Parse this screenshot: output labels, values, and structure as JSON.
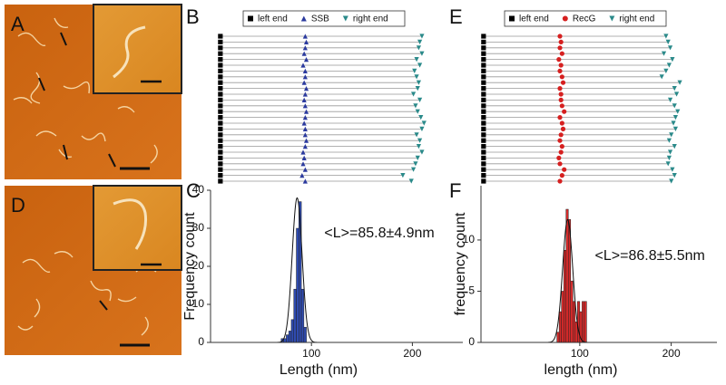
{
  "images": [
    {
      "label": "A"
    },
    {
      "label": "D"
    }
  ],
  "chart_data": [
    {
      "type": "strip",
      "label": "B",
      "xlim": [
        -5,
        220
      ],
      "series": [
        {
          "name": "left end",
          "color": "#000000",
          "marker": "square",
          "values": [
            0,
            0,
            0,
            0,
            0,
            0,
            0,
            0,
            0,
            0,
            0,
            0,
            0,
            0,
            0,
            0,
            0,
            0,
            0,
            0,
            0,
            0,
            0,
            0,
            0,
            0
          ]
        },
        {
          "name": "SSB",
          "color": "#2b3a9e",
          "marker": "triangle",
          "values": [
            80,
            81,
            80,
            79,
            81,
            78,
            80,
            80,
            79,
            81,
            80,
            79,
            80,
            81,
            80,
            79,
            80,
            80,
            81,
            80,
            78,
            79,
            78,
            80,
            77,
            80
          ]
        },
        {
          "name": "right end",
          "color": "#2a8a8a",
          "marker": "triangle-down",
          "values": [
            190,
            188,
            187,
            190,
            185,
            188,
            183,
            185,
            187,
            186,
            182,
            188,
            184,
            186,
            189,
            192,
            190,
            185,
            188,
            187,
            190,
            186,
            184,
            182,
            172,
            180
          ]
        }
      ]
    },
    {
      "type": "strip",
      "label": "E",
      "xlim": [
        -5,
        220
      ],
      "series": [
        {
          "name": "left end",
          "color": "#000000",
          "marker": "square",
          "values": [
            0,
            0,
            0,
            0,
            0,
            0,
            0,
            0,
            0,
            0,
            0,
            0,
            0,
            0,
            0,
            0,
            0,
            0,
            0,
            0,
            0,
            0,
            0,
            0,
            0,
            0
          ]
        },
        {
          "name": "RecG",
          "color": "#d62020",
          "marker": "circle",
          "values": [
            72,
            73,
            72,
            74,
            71,
            73,
            72,
            74,
            75,
            72,
            73,
            73,
            74,
            76,
            72,
            74,
            75,
            73,
            72,
            74,
            73,
            71,
            72,
            76,
            74,
            72
          ]
        },
        {
          "name": "right end",
          "color": "#2a8a8a",
          "marker": "triangle-down",
          "values": [
            172,
            174,
            176,
            170,
            178,
            175,
            172,
            168,
            185,
            180,
            182,
            176,
            180,
            183,
            181,
            179,
            181,
            177,
            175,
            180,
            176,
            175,
            174,
            178,
            180,
            177
          ]
        }
      ]
    },
    {
      "type": "histogram",
      "label": "C",
      "color": "#2f4bb0",
      "x_label": "Length (nm)",
      "y_label": "Frequency count",
      "annotation": "<L>=85.8±4.9nm",
      "bins": [
        70,
        72.5,
        75,
        77.5,
        80,
        82.5,
        85,
        87.5,
        90,
        92.5,
        95
      ],
      "values": [
        1,
        1,
        2,
        3,
        6,
        14,
        30,
        37,
        14,
        4
      ],
      "fit": {
        "center": 85.8,
        "width": 4.9,
        "height": 38
      },
      "xlim": [
        0,
        250
      ],
      "ylim": [
        0,
        40
      ],
      "xticks": [
        100,
        200
      ],
      "yticks": [
        0,
        10,
        20,
        30,
        40
      ]
    },
    {
      "type": "histogram",
      "label": "F",
      "color": "#d42a2a",
      "x_label": "length (nm)",
      "y_label": "frequency count",
      "annotation": "<L>=86.8±5.5nm",
      "bins": [
        75,
        77.5,
        80,
        82.5,
        85,
        87.5,
        90,
        92.5,
        95,
        97.5,
        100,
        102.5,
        105,
        107.5
      ],
      "values": [
        1,
        3,
        5,
        9,
        13,
        12,
        6,
        4,
        2,
        4,
        3,
        4,
        4
      ],
      "fit": {
        "center": 86.8,
        "width": 5.5,
        "height": 12
      },
      "xlim": [
        -8,
        250
      ],
      "ylim": [
        0,
        15.3
      ],
      "xticks": [
        100,
        200
      ],
      "yticks": [
        0,
        5,
        10
      ]
    }
  ]
}
